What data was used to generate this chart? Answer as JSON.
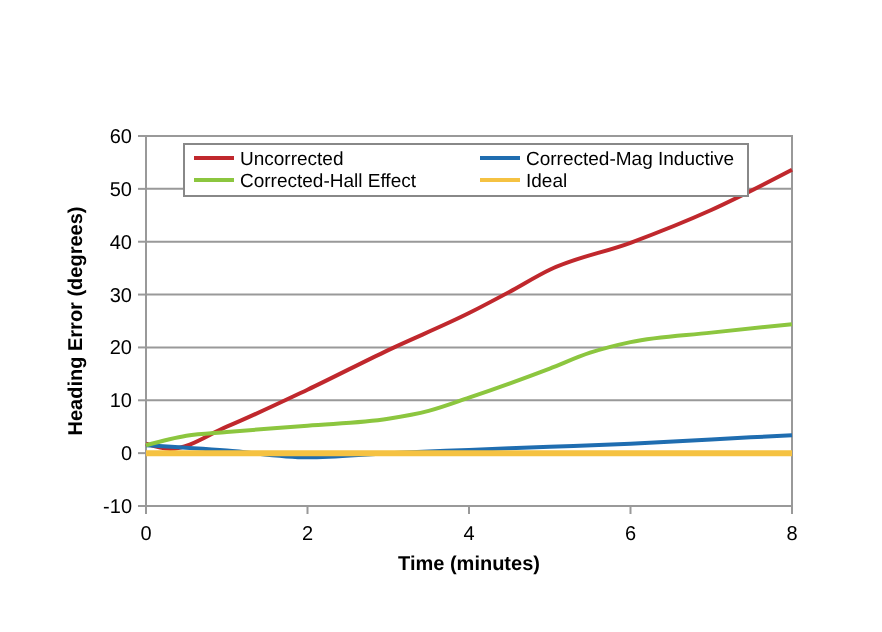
{
  "chart_data": {
    "type": "line",
    "xlabel": "Time (minutes)",
    "ylabel": "Heading Error (degrees)",
    "xlim": [
      0,
      8
    ],
    "xticks": [
      0,
      2,
      4,
      6,
      8
    ],
    "ylim": [
      -10,
      60
    ],
    "yticks": [
      -10,
      0,
      10,
      20,
      30,
      40,
      50,
      60
    ],
    "grid": "y",
    "legend": "top",
    "marker": "none",
    "line_style": "solid",
    "series": [
      {
        "name": "Uncorrected",
        "color": "#c0282d",
        "x": [
          0,
          0.3,
          1,
          2,
          3,
          4,
          4.5,
          5,
          6,
          7,
          8
        ],
        "values": [
          1.8,
          0.8,
          5,
          12,
          19.5,
          26.5,
          30.5,
          34.7,
          39.8,
          46,
          53.6
        ]
      },
      {
        "name": "Corrected-Mag Inductive",
        "color": "#1f6db0",
        "x": [
          0,
          1,
          2,
          3,
          4,
          5,
          6,
          7,
          8
        ],
        "values": [
          1.5,
          0.5,
          -0.8,
          0,
          0.6,
          1.2,
          1.8,
          2.6,
          3.4
        ]
      },
      {
        "name": "Corrected-Hall Effect",
        "color": "#8cc63f",
        "x": [
          0,
          0.5,
          1,
          2,
          3,
          3.5,
          4,
          5,
          5.5,
          6,
          7,
          8
        ],
        "values": [
          1.5,
          3.3,
          4,
          5.2,
          6.5,
          8,
          10.5,
          16,
          19,
          21,
          22.8,
          24.4
        ]
      },
      {
        "name": "Ideal",
        "color": "#f5c242",
        "x": [
          0,
          8
        ],
        "values": [
          0,
          0
        ]
      }
    ]
  }
}
